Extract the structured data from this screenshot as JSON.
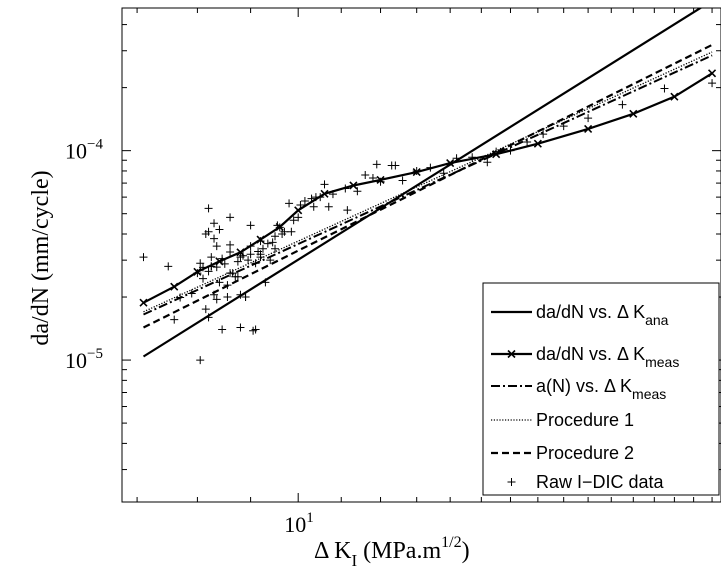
{
  "chart_data": {
    "type": "line",
    "title": "",
    "xlabel": {
      "main": "Δ K",
      "sub": "I",
      "rest": " (MPa.m",
      "sup": "1/2",
      "close": ")"
    },
    "ylabel": "da/dN (mm/cycle)",
    "xscale": "log",
    "yscale": "log",
    "xlim": [
      6.77,
      25.5
    ],
    "ylim": [
      2.1e-06,
      0.00048
    ],
    "grid": false,
    "xticks": [
      {
        "value": 10,
        "base": "10",
        "exp": "1"
      }
    ],
    "yticks": [
      {
        "value": 1e-05,
        "base": "10",
        "exp": "−5"
      },
      {
        "value": 0.0001,
        "base": "10",
        "exp": "−4"
      }
    ],
    "legend_position": "bottom-right",
    "series": [
      {
        "name": "da/dN vs. Δ K",
        "name_sub": "ana",
        "style": "solid",
        "x": [
          7.1,
          25.0
        ],
        "y": [
          1.04e-05,
          0.00052
        ]
      },
      {
        "name": "da/dN vs. Δ K",
        "name_sub": "meas",
        "style": "solid-x",
        "x": [
          7.1,
          7.6,
          8.0,
          8.4,
          8.8,
          9.2,
          9.6,
          10.0,
          10.6,
          11.3,
          12.0,
          13.0,
          14.0,
          15.5,
          17.0,
          19.0,
          21.0,
          23.0,
          25.0
        ],
        "y": [
          1.88e-05,
          2.24e-05,
          2.64e-05,
          2.96e-05,
          3.27e-05,
          3.76e-05,
          4.32e-05,
          5.19e-05,
          6.22e-05,
          6.82e-05,
          7.25e-05,
          7.9e-05,
          8.72e-05,
          9.62e-05,
          0.000108,
          0.000127,
          0.00015,
          0.000181,
          0.000234
        ]
      },
      {
        "name": "a(N) vs. Δ K",
        "name_sub": "meas",
        "style": "dashdot",
        "x": [
          7.1,
          25.0
        ],
        "y": [
          1.65e-05,
          0.000285
        ]
      },
      {
        "name": "Procedure 1",
        "name_sub": "",
        "style": "dotted",
        "x": [
          7.1,
          25.0
        ],
        "y": [
          1.7e-05,
          0.000296
        ]
      },
      {
        "name": "Procedure 2",
        "name_sub": "",
        "style": "dashed",
        "x": [
          7.1,
          25.0
        ],
        "y": [
          1.43e-05,
          0.00032
        ]
      }
    ],
    "raw_points_name": "Raw I−DIC data",
    "raw_points": {
      "x": [
        7.1,
        7.5,
        7.7,
        7.6,
        7.9,
        8.0,
        8.05,
        8.1,
        8.1,
        8.15,
        8.2,
        8.2,
        8.25,
        8.25,
        8.3,
        8.35,
        8.35,
        8.4,
        8.45,
        8.45,
        8.5,
        8.55,
        8.6,
        8.6,
        8.65,
        8.7,
        8.75,
        8.8,
        8.8,
        8.85,
        8.9,
        8.95,
        9.0,
        9.0,
        9.05,
        9.1,
        9.15,
        9.2,
        9.2,
        9.25,
        9.3,
        9.35,
        9.4,
        9.45,
        9.5,
        9.5,
        9.6,
        9.7,
        9.8,
        9.9,
        10.0,
        10.05,
        10.15,
        10.35,
        10.5,
        10.6,
        10.7,
        10.8,
        11.1,
        11.4,
        11.6,
        11.8,
        12.0,
        12.3,
        12.6,
        13.0,
        13.4,
        13.8,
        14.2,
        14.7,
        15.2,
        15.5,
        16.0,
        16.6,
        17.2,
        18.0,
        19.0,
        20.5,
        22.5,
        25.0,
        8.05,
        8.15,
        8.2,
        8.3,
        8.35,
        8.55,
        8.6,
        8.75,
        8.8,
        8.25,
        8.4,
        8.6,
        8.3,
        8.2,
        8.9,
        9.1,
        9.2,
        9.55,
        9.65,
        9.85,
        9.0,
        10.3,
        10.4,
        11.9,
        12.4,
        11.15
      ],
      "y": [
        3.1e-05,
        2.8e-05,
        1.99e-05,
        1.56e-05,
        2.08e-05,
        2.6e-05,
        2.9e-05,
        2.45e-05,
        2.77e-05,
        1.75e-05,
        1.6e-05,
        2.65e-05,
        2.8e-05,
        3.1e-05,
        2.05e-05,
        1.95e-05,
        2.78e-05,
        2.35e-05,
        1.4e-05,
        3.05e-05,
        2.88e-05,
        2.28e-05,
        2.6e-05,
        3.28e-05,
        2.6e-05,
        2.5e-05,
        2.95e-05,
        2.05e-05,
        3.1e-05,
        3.15e-05,
        2e-05,
        3e-05,
        3.2e-05,
        3.5e-05,
        1.38e-05,
        2.9e-05,
        3.3e-05,
        3.1e-05,
        3.7e-05,
        3.4e-05,
        2.35e-05,
        3.6e-05,
        3e-05,
        3.65e-05,
        3.9e-05,
        3.4e-05,
        4.3e-05,
        4.1e-05,
        5.6e-05,
        4.65e-05,
        4.8e-05,
        5.5e-05,
        5.75e-05,
        5.4e-05,
        6e-05,
        6.9e-05,
        5.4e-05,
        6.2e-05,
        6.6e-05,
        6.4e-05,
        7.65e-05,
        7.4e-05,
        7.1e-05,
        8.5e-05,
        7.2e-05,
        8e-05,
        8.3e-05,
        7.8e-05,
        9.2e-05,
        9.3e-05,
        8.8e-05,
        9.9e-05,
        0.0001,
        0.00011,
        0.00012,
        0.000131,
        0.000143,
        0.000166,
        0.000198,
        0.00021,
        1e-05,
        4e-05,
        5.3e-05,
        3.8e-05,
        3.5e-05,
        2e-05,
        3.55e-05,
        2.5e-05,
        1.43e-05,
        2.8e-05,
        4.2e-05,
        4.8e-05,
        4.5e-05,
        4.1e-05,
        2e-05,
        1.4e-05,
        3.2e-05,
        4.4e-05,
        4e-05,
        4.1e-05,
        4.4e-05,
        5.9e-05,
        6e-05,
        8.6e-05,
        8.5e-05,
        5.2e-05
      ]
    }
  }
}
